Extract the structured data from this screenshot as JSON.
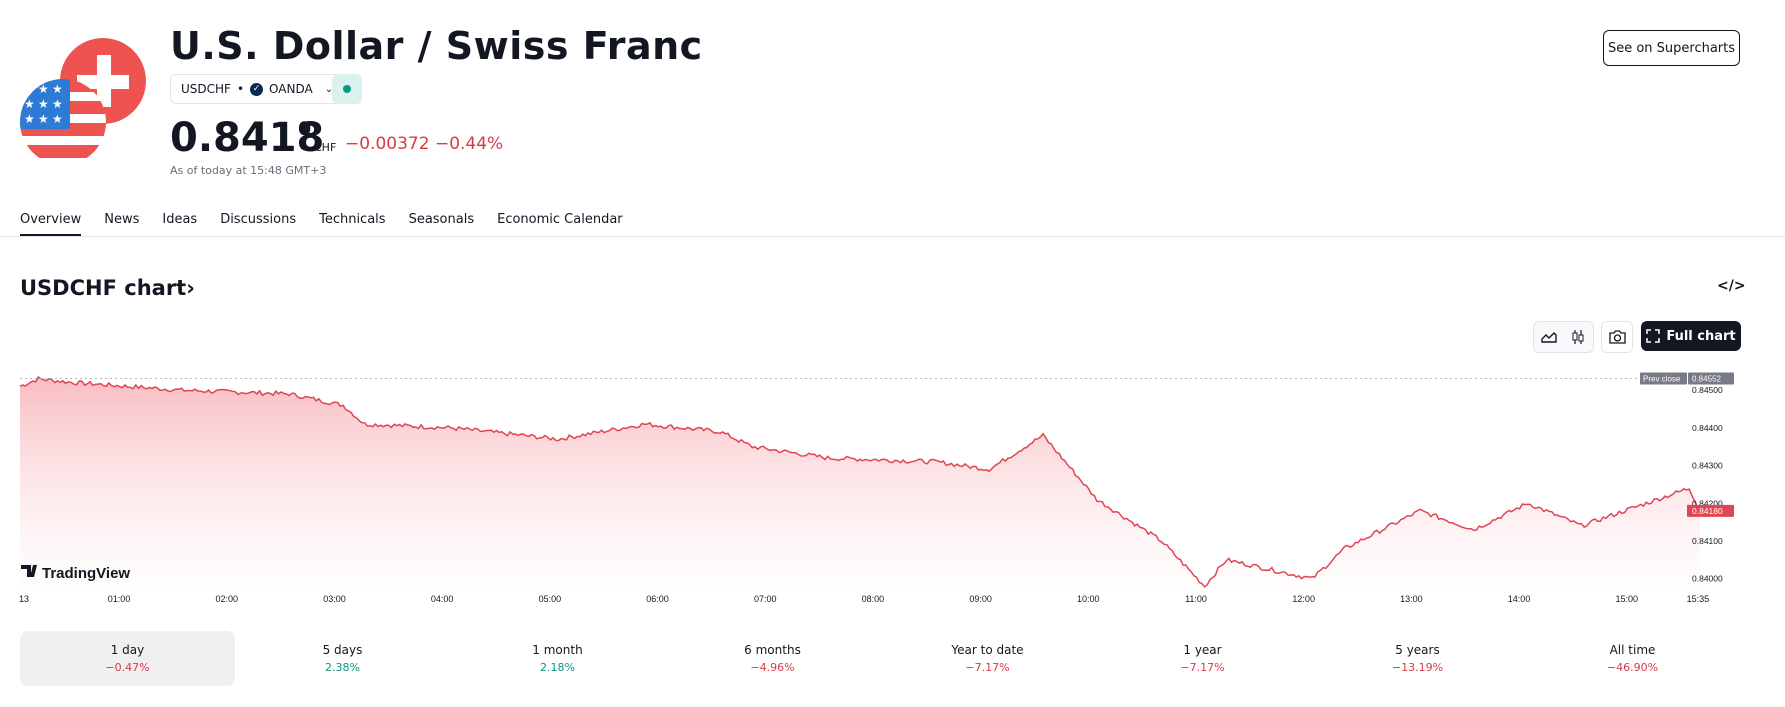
{
  "header": {
    "title": "U.S. Dollar / Swiss Franc",
    "symbol": "USDCHF",
    "separator": "•",
    "exchange": "OANDA",
    "price_main": "0.8418",
    "price_sup": "0",
    "currency": "CHF",
    "change": "−0.00372 −0.44%",
    "as_of": "As of today at 15:48 GMT+3",
    "supercharts_label": "See on Supercharts"
  },
  "tabs": [
    "Overview",
    "News",
    "Ideas",
    "Discussions",
    "Technicals",
    "Seasonals",
    "Economic Calendar"
  ],
  "chart_section": {
    "title": "USDCHF chart",
    "embed_icon": "</>",
    "full_chart_label": "Full chart",
    "brand": "TradingView"
  },
  "chart_data": {
    "type": "area",
    "x_ticks": [
      "13",
      "01:00",
      "02:00",
      "03:00",
      "04:00",
      "05:00",
      "06:00",
      "07:00",
      "08:00",
      "09:00",
      "10:00",
      "11:00",
      "12:00",
      "13:00",
      "14:00",
      "15:00",
      "15:35"
    ],
    "y_ticks": [
      "0.84500",
      "0.84400",
      "0.84300",
      "0.84200",
      "0.84100",
      "0.84000"
    ],
    "ylim": [
      0.8397,
      0.8458
    ],
    "prev_close_label": "Prev close",
    "prev_close": "0.84552",
    "last_price": "0.84180",
    "series": [
      {
        "line_color": "#e04552",
        "points": [
          [
            0,
            0.8451
          ],
          [
            0.17,
            0.8453
          ],
          [
            0.5,
            0.8452
          ],
          [
            1.0,
            0.8451
          ],
          [
            1.5,
            0.845
          ],
          [
            2.5,
            0.8449
          ],
          [
            3.0,
            0.8446
          ],
          [
            3.2,
            0.8441
          ],
          [
            4.0,
            0.844
          ],
          [
            5.0,
            0.8437
          ],
          [
            5.8,
            0.8441
          ],
          [
            6.5,
            0.8439
          ],
          [
            6.8,
            0.8435
          ],
          [
            7.5,
            0.8432
          ],
          [
            8.5,
            0.8431
          ],
          [
            9.0,
            0.8429
          ],
          [
            9.5,
            0.8438
          ],
          [
            10.0,
            0.8421
          ],
          [
            10.6,
            0.841
          ],
          [
            11.0,
            0.8398
          ],
          [
            11.2,
            0.8405
          ],
          [
            12.0,
            0.84
          ],
          [
            12.3,
            0.8408
          ],
          [
            13.0,
            0.8418
          ],
          [
            13.5,
            0.8413
          ],
          [
            14.0,
            0.842
          ],
          [
            14.5,
            0.8414
          ],
          [
            15.0,
            0.8419
          ],
          [
            15.5,
            0.8424
          ],
          [
            15.6,
            0.8418
          ]
        ]
      }
    ]
  },
  "periods": [
    {
      "label": "1 day",
      "value": "−0.47%",
      "dir": "neg"
    },
    {
      "label": "5 days",
      "value": "2.38%",
      "dir": "pos"
    },
    {
      "label": "1 month",
      "value": "2.18%",
      "dir": "pos"
    },
    {
      "label": "6 months",
      "value": "−4.96%",
      "dir": "neg"
    },
    {
      "label": "Year to date",
      "value": "−7.17%",
      "dir": "neg"
    },
    {
      "label": "1 year",
      "value": "−7.17%",
      "dir": "neg"
    },
    {
      "label": "5 years",
      "value": "−13.19%",
      "dir": "neg"
    },
    {
      "label": "All time",
      "value": "−46.90%",
      "dir": "neg"
    }
  ]
}
